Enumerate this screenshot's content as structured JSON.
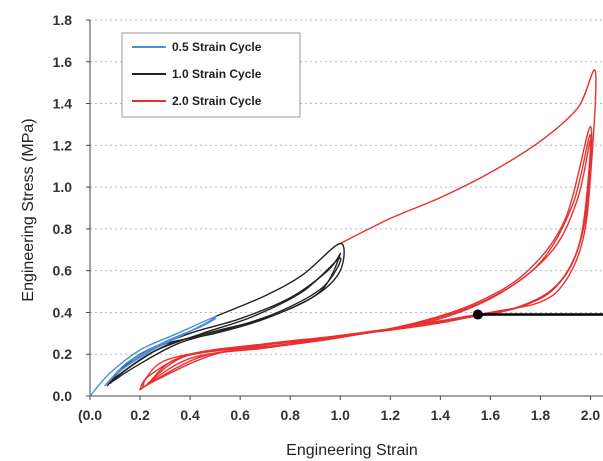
{
  "chart_data": {
    "type": "line",
    "xlabel": "Engineering Strain",
    "ylabel": "Engineering Stress (MPa)",
    "xlim": [
      0.0,
      2.05
    ],
    "ylim": [
      0.0,
      1.8
    ],
    "x_ticks": [
      "0.0",
      "0.2",
      "0.4",
      "0.6",
      "0.8",
      "1.0",
      "1.2",
      "1.4",
      "1.6",
      "1.8",
      "2.0"
    ],
    "x_first_tick_display": "(0.0",
    "y_ticks": [
      "0.0",
      "0.2",
      "0.4",
      "0.6",
      "0.8",
      "1.0",
      "1.2",
      "1.4",
      "1.6",
      "1.8"
    ],
    "grid": "horizontal dotted",
    "legend_position": "top-left",
    "series": [
      {
        "name": "0.5 Strain Cycle",
        "color": "#4a90d9",
        "loops": [
          {
            "x": [
              0.0,
              0.08,
              0.2,
              0.35,
              0.5,
              0.45,
              0.35,
              0.2,
              0.1,
              0.06
            ],
            "y": [
              0.0,
              0.11,
              0.22,
              0.3,
              0.38,
              0.34,
              0.28,
              0.19,
              0.1,
              0.05
            ]
          },
          {
            "x": [
              0.06,
              0.15,
              0.3,
              0.44,
              0.5,
              0.4,
              0.25,
              0.12,
              0.07
            ],
            "y": [
              0.05,
              0.16,
              0.26,
              0.33,
              0.37,
              0.31,
              0.22,
              0.12,
              0.06
            ]
          }
        ]
      },
      {
        "name": "1.0 Strain Cycle",
        "color": "#222222",
        "loops": [
          {
            "x": [
              0.5,
              0.7,
              0.85,
              1.0,
              1.0,
              0.9,
              0.7,
              0.5,
              0.3,
              0.15,
              0.07
            ],
            "y": [
              0.38,
              0.48,
              0.58,
              0.73,
              0.6,
              0.48,
              0.37,
              0.3,
              0.25,
              0.16,
              0.05
            ]
          },
          {
            "x": [
              0.07,
              0.2,
              0.4,
              0.6,
              0.8,
              0.95,
              1.0,
              0.92,
              0.72,
              0.5,
              0.3,
              0.15,
              0.08
            ],
            "y": [
              0.06,
              0.2,
              0.3,
              0.37,
              0.47,
              0.6,
              0.68,
              0.5,
              0.38,
              0.31,
              0.24,
              0.13,
              0.06
            ]
          },
          {
            "x": [
              0.08,
              0.25,
              0.45,
              0.65,
              0.85,
              1.0,
              0.93,
              0.75,
              0.55,
              0.35,
              0.18,
              0.09
            ],
            "y": [
              0.07,
              0.21,
              0.3,
              0.38,
              0.5,
              0.66,
              0.52,
              0.4,
              0.32,
              0.25,
              0.14,
              0.07
            ]
          }
        ]
      },
      {
        "name": "2.0 Strain Cycle",
        "color": "#e83030",
        "loops": [
          {
            "x": [
              1.0,
              1.2,
              1.4,
              1.6,
              1.8,
              1.95,
              2.02,
              2.0,
              1.97,
              1.9,
              1.8,
              1.6,
              1.4,
              1.1,
              0.8,
              0.5,
              0.3,
              0.22,
              0.2
            ],
            "y": [
              0.73,
              0.85,
              0.95,
              1.07,
              1.22,
              1.38,
              1.55,
              1.05,
              0.75,
              0.55,
              0.45,
              0.4,
              0.35,
              0.3,
              0.26,
              0.22,
              0.17,
              0.08,
              0.03
            ]
          },
          {
            "x": [
              0.2,
              0.4,
              0.7,
              1.0,
              1.3,
              1.55,
              1.75,
              1.9,
              2.0,
              1.98,
              1.9,
              1.75,
              1.55,
              1.3,
              1.0,
              0.7,
              0.4,
              0.24,
              0.21
            ],
            "y": [
              0.03,
              0.18,
              0.23,
              0.28,
              0.35,
              0.45,
              0.6,
              0.85,
              1.29,
              0.85,
              0.58,
              0.44,
              0.39,
              0.34,
              0.29,
              0.25,
              0.2,
              0.1,
              0.04
            ]
          },
          {
            "x": [
              0.21,
              0.45,
              0.75,
              1.05,
              1.35,
              1.6,
              1.8,
              1.93,
              2.0,
              1.97,
              1.88,
              1.72,
              1.5,
              1.25,
              0.95,
              0.65,
              0.38,
              0.23
            ],
            "y": [
              0.04,
              0.19,
              0.24,
              0.29,
              0.36,
              0.47,
              0.64,
              0.92,
              1.25,
              0.8,
              0.55,
              0.43,
              0.38,
              0.33,
              0.28,
              0.24,
              0.19,
              0.06
            ]
          },
          {
            "x": [
              0.22,
              0.5,
              0.8,
              1.1,
              1.4,
              1.65,
              1.85,
              1.95,
              2.0,
              1.96,
              1.86,
              1.7,
              1.48,
              1.2,
              0.9,
              0.6,
              0.35,
              0.24
            ],
            "y": [
              0.05,
              0.2,
              0.25,
              0.3,
              0.37,
              0.5,
              0.7,
              0.95,
              1.22,
              0.75,
              0.52,
              0.42,
              0.37,
              0.32,
              0.27,
              0.23,
              0.18,
              0.07
            ]
          }
        ]
      }
    ],
    "annotation": {
      "marker": {
        "x": 1.55,
        "y": 0.39
      },
      "line_to_x": 2.05,
      "color": "#000000"
    }
  }
}
